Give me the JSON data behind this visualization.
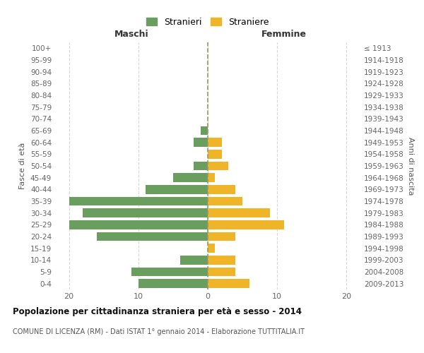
{
  "age_groups": [
    "0-4",
    "5-9",
    "10-14",
    "15-19",
    "20-24",
    "25-29",
    "30-34",
    "35-39",
    "40-44",
    "45-49",
    "50-54",
    "55-59",
    "60-64",
    "65-69",
    "70-74",
    "75-79",
    "80-84",
    "85-89",
    "90-94",
    "95-99",
    "100+"
  ],
  "birth_years": [
    "2009-2013",
    "2004-2008",
    "1999-2003",
    "1994-1998",
    "1989-1993",
    "1984-1988",
    "1979-1983",
    "1974-1978",
    "1969-1973",
    "1964-1968",
    "1959-1963",
    "1954-1958",
    "1949-1953",
    "1944-1948",
    "1939-1943",
    "1934-1938",
    "1929-1933",
    "1924-1928",
    "1919-1923",
    "1914-1918",
    "≤ 1913"
  ],
  "maschi": [
    10,
    11,
    4,
    0,
    16,
    20,
    18,
    20,
    9,
    5,
    2,
    0,
    2,
    1,
    0,
    0,
    0,
    0,
    0,
    0,
    0
  ],
  "femmine": [
    6,
    4,
    4,
    1,
    4,
    11,
    9,
    5,
    4,
    1,
    3,
    2,
    2,
    0,
    0,
    0,
    0,
    0,
    0,
    0,
    0
  ],
  "color_maschi": "#6a9e5e",
  "color_femmine": "#f0b429",
  "title_main": "Popolazione per cittadinanza straniera per età e sesso - 2014",
  "title_sub": "COMUNE DI LICENZA (RM) - Dati ISTAT 1° gennaio 2014 - Elaborazione TUTTITALIA.IT",
  "xlabel_left": "Maschi",
  "xlabel_right": "Femmine",
  "ylabel_left": "Fasce di età",
  "ylabel_right": "Anni di nascita",
  "legend_maschi": "Stranieri",
  "legend_femmine": "Straniere",
  "xlim": 22,
  "background_color": "#ffffff",
  "grid_color": "#d8d8d8"
}
